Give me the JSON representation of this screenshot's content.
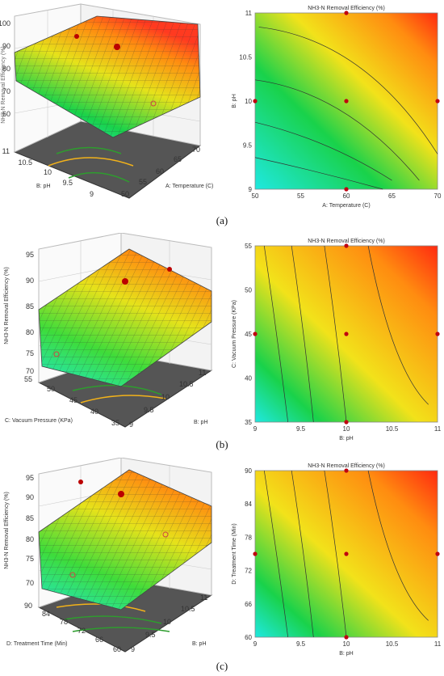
{
  "panels": [
    {
      "label": "(a)",
      "surface": {
        "zlabel": "NH3-N Removal Efficiency (%)",
        "zticks": [
          "100",
          "90",
          "80",
          "70",
          "60"
        ],
        "xlabel": "A: Temperature (C)",
        "xticks": [
          "50",
          "55",
          "60",
          "65",
          "70"
        ],
        "ylabel": "B: pH",
        "yticks": [
          "9",
          "9.5",
          "10",
          "10.5",
          "11"
        ]
      },
      "contour": {
        "title": "NH3-N Removal Efficiency (%)",
        "xlabel": "A: Temperature (C)",
        "ylabel": "B: pH",
        "xticks": [
          "50",
          "55",
          "60",
          "65",
          "70"
        ],
        "yticks": [
          "9",
          "9.5",
          "10",
          "10.5",
          "11"
        ]
      }
    },
    {
      "label": "(b)",
      "surface": {
        "zlabel": "NH3-N Removal Efficiency (%)",
        "zticks": [
          "95",
          "90",
          "85",
          "80",
          "75",
          "70"
        ],
        "xlabel": "B: pH",
        "xticks": [
          "9",
          "9.5",
          "10",
          "10.5",
          "11"
        ],
        "ylabel": "C: Vacuum Pressure (KPa)",
        "yticks": [
          "35",
          "40",
          "45",
          "50",
          "55"
        ]
      },
      "contour": {
        "title": "NH3-N Removal Efficiency (%)",
        "xlabel": "B: pH",
        "ylabel": "C: Vacuum Pressure (KPa)",
        "xticks": [
          "9",
          "9.5",
          "10",
          "10.5",
          "11"
        ],
        "yticks": [
          "35",
          "40",
          "45",
          "50",
          "55"
        ]
      }
    },
    {
      "label": "(c)",
      "surface": {
        "zlabel": "NH3-N Removal Efficiency (%)",
        "zticks": [
          "95",
          "90",
          "85",
          "80",
          "75",
          "70"
        ],
        "xlabel": "B: pH",
        "xticks": [
          "9",
          "9.5",
          "10",
          "10.5",
          "11"
        ],
        "ylabel": "D: Treatment Time (Min)",
        "yticks": [
          "60",
          "66",
          "72",
          "78",
          "84",
          "90"
        ]
      },
      "contour": {
        "title": "NH3-N Removal Efficiency (%)",
        "xlabel": "B: pH",
        "ylabel": "D: Treatment Time (Min)",
        "xticks": [
          "9",
          "9.5",
          "10",
          "10.5",
          "11"
        ],
        "yticks": [
          "60",
          "66",
          "72",
          "78",
          "84",
          "90"
        ]
      }
    }
  ],
  "chart_data": [
    {
      "type": "heatmap",
      "title": "NH3-N Removal Efficiency (%)",
      "xlabel": "A: Temperature (C)",
      "ylabel": "B: pH",
      "xlim": [
        50,
        70
      ],
      "ylim": [
        9,
        11
      ],
      "colormap": [
        "#1fe8e0",
        "#19d24a",
        "#f2e21a",
        "#ff8c10",
        "#ff2a10"
      ],
      "design_points": [
        [
          50,
          10
        ],
        [
          60,
          10
        ],
        [
          70,
          10
        ],
        [
          60,
          9
        ],
        [
          60,
          11
        ]
      ]
    },
    {
      "type": "heatmap",
      "title": "NH3-N Removal Efficiency (%)",
      "xlabel": "B: pH",
      "ylabel": "C: Vacuum Pressure (KPa)",
      "xlim": [
        9,
        11
      ],
      "ylim": [
        35,
        55
      ],
      "colormap": [
        "#1fe8e0",
        "#19d24a",
        "#f2e21a",
        "#ff8c10",
        "#ff2a10"
      ],
      "design_points": [
        [
          9,
          45
        ],
        [
          10,
          45
        ],
        [
          11,
          45
        ],
        [
          10,
          35
        ],
        [
          10,
          55
        ]
      ]
    },
    {
      "type": "heatmap",
      "title": "NH3-N Removal Efficiency (%)",
      "xlabel": "B: pH",
      "ylabel": "D: Treatment Time (Min)",
      "xlim": [
        9,
        11
      ],
      "ylim": [
        60,
        90
      ],
      "colormap": [
        "#1fe8e0",
        "#19d24a",
        "#f2e21a",
        "#ff8c10",
        "#ff2a10"
      ],
      "design_points": [
        [
          9,
          75
        ],
        [
          10,
          75
        ],
        [
          11,
          75
        ],
        [
          10,
          60
        ],
        [
          10,
          90
        ]
      ]
    }
  ]
}
